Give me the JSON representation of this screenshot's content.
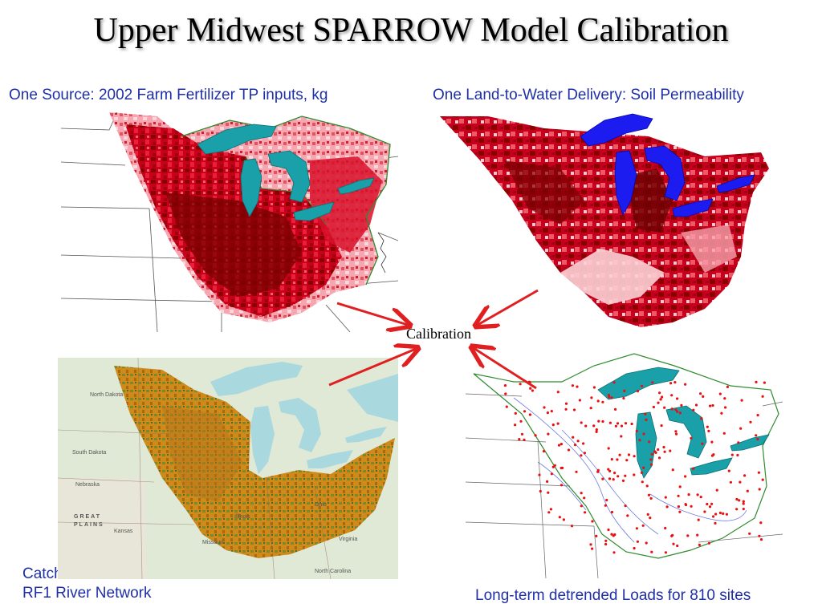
{
  "slide": {
    "title": "Upper Midwest SPARROW Model Calibration",
    "center_label": "Calibration"
  },
  "panels": {
    "top_left": {
      "caption": "One Source: 2002 Farm Fertilizer TP inputs, kg"
    },
    "top_right": {
      "caption": "One Land-to-Water Delivery: Soil Permeability"
    },
    "bottom_left": {
      "caption_line1": "Catchments based on",
      "caption_line2": "RF1 River Network",
      "map_labels": [
        "North Dakota",
        "South Dakota",
        "Nebraska",
        "Kansas",
        "Missouri",
        "Illinois",
        "Ohio",
        "Virginia",
        "North Carolina",
        "GREAT",
        "PLAINS"
      ]
    },
    "bottom_right": {
      "caption": "Long-term detrended Loads for 810 sites"
    }
  },
  "colors": {
    "caption_text": "#1f2fa8",
    "arrow": "#e02020",
    "fertilizer_dark": "#8b0000",
    "fertilizer_mid": "#e0001a",
    "fertilizer_light": "#f7b0b8",
    "lakes_teal": "#1aa0a8",
    "lakes_blue": "#1c1cf0",
    "boundary_green": "#2e8b2e",
    "site_dots": "#e81010",
    "rivers": "#4a5cd8",
    "catchment_orange": "#d08a1a",
    "basemap_green": "#cfe3c8"
  },
  "icons": [
    "arrow-icon"
  ]
}
